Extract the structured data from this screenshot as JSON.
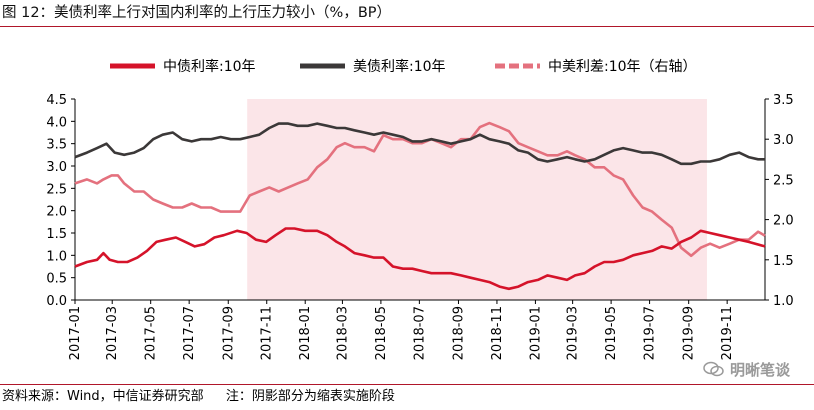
{
  "figure": {
    "title": "图 12：美债利率上行对国内利率的上行压力较小（%，BP）",
    "source": "资料来源：Wind，中信证券研究部",
    "note": "注：阴影部分为缩表实施阶段",
    "watermark": "明晰笔谈"
  },
  "colors": {
    "china": "#d5132a",
    "us": "#3b3838",
    "spread": "#e4717e",
    "shade": "#fbe5e8",
    "rule": "#b0162a"
  },
  "chart_data": {
    "type": "line",
    "x_ticks": [
      "2017-01",
      "2017-03",
      "2017-05",
      "2017-07",
      "2017-09",
      "2017-11",
      "2018-01",
      "2018-03",
      "2018-05",
      "2018-07",
      "2018-09",
      "2018-11",
      "2019-01",
      "2019-03",
      "2019-05",
      "2019-07",
      "2019-09",
      "2019-11"
    ],
    "x_range": [
      "2017-01-01",
      "2019-12-31"
    ],
    "y_left": {
      "ticks": [
        "0.0",
        "0.5",
        "1.0",
        "1.5",
        "2.0",
        "2.5",
        "3.0",
        "3.5",
        "4.0",
        "4.5"
      ],
      "range": [
        0,
        4.5
      ]
    },
    "y_right": {
      "ticks": [
        "1.0",
        "1.5",
        "2.0",
        "2.5",
        "3.0",
        "3.5"
      ],
      "range": [
        1.0,
        3.5
      ]
    },
    "shaded_region": {
      "start": "2017-10-01",
      "end": "2019-09-30"
    },
    "legend_position": "top",
    "series": [
      {
        "name": "中债利率:10年",
        "axis": "left",
        "color": "#d5132a",
        "dash": false,
        "points": [
          [
            "2017-01-01",
            0.75
          ],
          [
            "2017-01-20",
            0.85
          ],
          [
            "2017-02-05",
            0.9
          ],
          [
            "2017-02-15",
            1.05
          ],
          [
            "2017-02-25",
            0.9
          ],
          [
            "2017-03-10",
            0.85
          ],
          [
            "2017-03-25",
            0.85
          ],
          [
            "2017-04-10",
            0.95
          ],
          [
            "2017-04-25",
            1.1
          ],
          [
            "2017-05-10",
            1.3
          ],
          [
            "2017-05-25",
            1.35
          ],
          [
            "2017-06-10",
            1.4
          ],
          [
            "2017-06-25",
            1.3
          ],
          [
            "2017-07-10",
            1.2
          ],
          [
            "2017-07-25",
            1.25
          ],
          [
            "2017-08-10",
            1.4
          ],
          [
            "2017-08-25",
            1.45
          ],
          [
            "2017-09-15",
            1.55
          ],
          [
            "2017-09-30",
            1.5
          ],
          [
            "2017-10-15",
            1.35
          ],
          [
            "2017-10-31",
            1.3
          ],
          [
            "2017-11-15",
            1.45
          ],
          [
            "2017-12-01",
            1.6
          ],
          [
            "2017-12-15",
            1.6
          ],
          [
            "2018-01-01",
            1.55
          ],
          [
            "2018-01-20",
            1.55
          ],
          [
            "2018-02-05",
            1.45
          ],
          [
            "2018-02-20",
            1.3
          ],
          [
            "2018-03-05",
            1.2
          ],
          [
            "2018-03-20",
            1.05
          ],
          [
            "2018-04-05",
            1.0
          ],
          [
            "2018-04-20",
            0.95
          ],
          [
            "2018-05-05",
            0.95
          ],
          [
            "2018-05-20",
            0.75
          ],
          [
            "2018-06-05",
            0.7
          ],
          [
            "2018-06-20",
            0.7
          ],
          [
            "2018-07-05",
            0.65
          ],
          [
            "2018-07-20",
            0.6
          ],
          [
            "2018-08-05",
            0.6
          ],
          [
            "2018-08-20",
            0.6
          ],
          [
            "2018-09-05",
            0.55
          ],
          [
            "2018-09-20",
            0.5
          ],
          [
            "2018-10-05",
            0.45
          ],
          [
            "2018-10-20",
            0.4
          ],
          [
            "2018-11-05",
            0.3
          ],
          [
            "2018-11-20",
            0.25
          ],
          [
            "2018-12-05",
            0.3
          ],
          [
            "2018-12-20",
            0.4
          ],
          [
            "2019-01-05",
            0.45
          ],
          [
            "2019-01-20",
            0.55
          ],
          [
            "2019-02-05",
            0.5
          ],
          [
            "2019-02-20",
            0.45
          ],
          [
            "2019-03-05",
            0.55
          ],
          [
            "2019-03-20",
            0.6
          ],
          [
            "2019-04-05",
            0.75
          ],
          [
            "2019-04-20",
            0.85
          ],
          [
            "2019-05-05",
            0.85
          ],
          [
            "2019-05-20",
            0.9
          ],
          [
            "2019-06-05",
            1.0
          ],
          [
            "2019-06-20",
            1.05
          ],
          [
            "2019-07-05",
            1.1
          ],
          [
            "2019-07-20",
            1.2
          ],
          [
            "2019-08-05",
            1.15
          ],
          [
            "2019-08-20",
            1.3
          ],
          [
            "2019-09-05",
            1.4
          ],
          [
            "2019-09-20",
            1.55
          ],
          [
            "2019-10-05",
            1.5
          ],
          [
            "2019-10-20",
            1.45
          ],
          [
            "2019-11-05",
            1.4
          ],
          [
            "2019-11-20",
            1.35
          ],
          [
            "2019-12-05",
            1.3
          ],
          [
            "2019-12-31",
            1.2
          ]
        ]
      },
      {
        "name": "美债利率:10年",
        "axis": "left",
        "color": "#3b3838",
        "dash": false,
        "points": [
          [
            "2017-01-01",
            3.2
          ],
          [
            "2017-01-20",
            3.3
          ],
          [
            "2017-02-05",
            3.4
          ],
          [
            "2017-02-20",
            3.5
          ],
          [
            "2017-03-05",
            3.3
          ],
          [
            "2017-03-20",
            3.25
          ],
          [
            "2017-04-05",
            3.3
          ],
          [
            "2017-04-20",
            3.4
          ],
          [
            "2017-05-05",
            3.6
          ],
          [
            "2017-05-20",
            3.7
          ],
          [
            "2017-06-05",
            3.75
          ],
          [
            "2017-06-20",
            3.6
          ],
          [
            "2017-07-05",
            3.55
          ],
          [
            "2017-07-20",
            3.6
          ],
          [
            "2017-08-05",
            3.6
          ],
          [
            "2017-08-20",
            3.65
          ],
          [
            "2017-09-05",
            3.6
          ],
          [
            "2017-09-20",
            3.6
          ],
          [
            "2017-10-05",
            3.65
          ],
          [
            "2017-10-20",
            3.7
          ],
          [
            "2017-11-05",
            3.85
          ],
          [
            "2017-11-20",
            3.95
          ],
          [
            "2017-12-05",
            3.95
          ],
          [
            "2017-12-20",
            3.9
          ],
          [
            "2018-01-05",
            3.9
          ],
          [
            "2018-01-20",
            3.95
          ],
          [
            "2018-02-05",
            3.9
          ],
          [
            "2018-02-20",
            3.85
          ],
          [
            "2018-03-05",
            3.85
          ],
          [
            "2018-03-20",
            3.8
          ],
          [
            "2018-04-05",
            3.75
          ],
          [
            "2018-04-20",
            3.7
          ],
          [
            "2018-05-05",
            3.75
          ],
          [
            "2018-05-20",
            3.7
          ],
          [
            "2018-06-05",
            3.65
          ],
          [
            "2018-06-20",
            3.55
          ],
          [
            "2018-07-05",
            3.55
          ],
          [
            "2018-07-20",
            3.6
          ],
          [
            "2018-08-05",
            3.55
          ],
          [
            "2018-08-20",
            3.5
          ],
          [
            "2018-09-05",
            3.55
          ],
          [
            "2018-09-20",
            3.6
          ],
          [
            "2018-10-05",
            3.7
          ],
          [
            "2018-10-20",
            3.6
          ],
          [
            "2018-11-05",
            3.55
          ],
          [
            "2018-11-20",
            3.5
          ],
          [
            "2018-12-05",
            3.35
          ],
          [
            "2018-12-20",
            3.3
          ],
          [
            "2019-01-05",
            3.15
          ],
          [
            "2019-01-20",
            3.1
          ],
          [
            "2019-02-05",
            3.15
          ],
          [
            "2019-02-20",
            3.2
          ],
          [
            "2019-03-05",
            3.15
          ],
          [
            "2019-03-20",
            3.1
          ],
          [
            "2019-04-05",
            3.15
          ],
          [
            "2019-04-20",
            3.25
          ],
          [
            "2019-05-05",
            3.35
          ],
          [
            "2019-05-20",
            3.4
          ],
          [
            "2019-06-05",
            3.35
          ],
          [
            "2019-06-20",
            3.3
          ],
          [
            "2019-07-05",
            3.3
          ],
          [
            "2019-07-20",
            3.25
          ],
          [
            "2019-08-05",
            3.15
          ],
          [
            "2019-08-20",
            3.05
          ],
          [
            "2019-09-05",
            3.05
          ],
          [
            "2019-09-20",
            3.1
          ],
          [
            "2019-10-05",
            3.1
          ],
          [
            "2019-10-20",
            3.15
          ],
          [
            "2019-11-05",
            3.25
          ],
          [
            "2019-11-20",
            3.3
          ],
          [
            "2019-12-05",
            3.2
          ],
          [
            "2019-12-20",
            3.15
          ],
          [
            "2019-12-31",
            3.15
          ]
        ]
      },
      {
        "name": "中美利差:10年（右轴）",
        "axis": "right",
        "color": "#e4717e",
        "dash": true,
        "points": [
          [
            "2017-01-01",
            2.45
          ],
          [
            "2017-01-20",
            2.5
          ],
          [
            "2017-02-05",
            2.45
          ],
          [
            "2017-02-15",
            2.5
          ],
          [
            "2017-02-28",
            2.55
          ],
          [
            "2017-03-10",
            2.55
          ],
          [
            "2017-03-20",
            2.45
          ],
          [
            "2017-04-05",
            2.35
          ],
          [
            "2017-04-20",
            2.35
          ],
          [
            "2017-05-05",
            2.25
          ],
          [
            "2017-05-20",
            2.2
          ],
          [
            "2017-06-05",
            2.15
          ],
          [
            "2017-06-20",
            2.15
          ],
          [
            "2017-07-05",
            2.2
          ],
          [
            "2017-07-20",
            2.15
          ],
          [
            "2017-08-05",
            2.15
          ],
          [
            "2017-08-20",
            2.1
          ],
          [
            "2017-09-05",
            2.1
          ],
          [
            "2017-09-20",
            2.1
          ],
          [
            "2017-10-05",
            2.3
          ],
          [
            "2017-10-20",
            2.35
          ],
          [
            "2017-11-05",
            2.4
          ],
          [
            "2017-11-20",
            2.35
          ],
          [
            "2017-12-05",
            2.4
          ],
          [
            "2017-12-20",
            2.45
          ],
          [
            "2018-01-05",
            2.5
          ],
          [
            "2018-01-20",
            2.65
          ],
          [
            "2018-02-05",
            2.75
          ],
          [
            "2018-02-20",
            2.9
          ],
          [
            "2018-03-05",
            2.95
          ],
          [
            "2018-03-20",
            2.9
          ],
          [
            "2018-04-05",
            2.9
          ],
          [
            "2018-04-20",
            2.85
          ],
          [
            "2018-05-05",
            3.05
          ],
          [
            "2018-05-20",
            3.0
          ],
          [
            "2018-06-05",
            3.0
          ],
          [
            "2018-06-20",
            2.95
          ],
          [
            "2018-07-05",
            2.95
          ],
          [
            "2018-07-20",
            3.0
          ],
          [
            "2018-08-05",
            2.95
          ],
          [
            "2018-08-20",
            2.9
          ],
          [
            "2018-09-05",
            3.0
          ],
          [
            "2018-09-20",
            3.0
          ],
          [
            "2018-10-05",
            3.15
          ],
          [
            "2018-10-20",
            3.2
          ],
          [
            "2018-11-05",
            3.15
          ],
          [
            "2018-11-20",
            3.1
          ],
          [
            "2018-12-05",
            2.95
          ],
          [
            "2018-12-20",
            2.9
          ],
          [
            "2019-01-05",
            2.85
          ],
          [
            "2019-01-20",
            2.8
          ],
          [
            "2019-02-05",
            2.8
          ],
          [
            "2019-02-20",
            2.85
          ],
          [
            "2019-03-05",
            2.8
          ],
          [
            "2019-03-20",
            2.75
          ],
          [
            "2019-04-05",
            2.65
          ],
          [
            "2019-04-20",
            2.65
          ],
          [
            "2019-05-05",
            2.55
          ],
          [
            "2019-05-20",
            2.5
          ],
          [
            "2019-06-05",
            2.3
          ],
          [
            "2019-06-20",
            2.15
          ],
          [
            "2019-07-05",
            2.1
          ],
          [
            "2019-07-20",
            2.0
          ],
          [
            "2019-08-05",
            1.9
          ],
          [
            "2019-08-20",
            1.65
          ],
          [
            "2019-09-05",
            1.55
          ],
          [
            "2019-09-20",
            1.65
          ],
          [
            "2019-10-05",
            1.7
          ],
          [
            "2019-10-20",
            1.65
          ],
          [
            "2019-11-05",
            1.7
          ],
          [
            "2019-11-20",
            1.75
          ],
          [
            "2019-12-05",
            1.75
          ],
          [
            "2019-12-20",
            1.85
          ],
          [
            "2019-12-31",
            1.8
          ]
        ]
      }
    ]
  }
}
